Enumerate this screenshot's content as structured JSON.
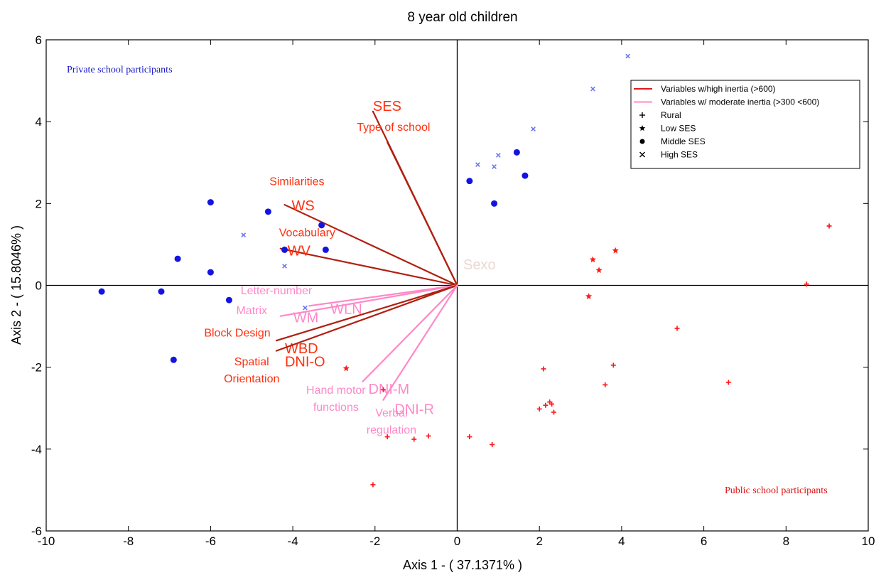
{
  "chart_data": {
    "type": "scatter",
    "title": "8 year old children",
    "xlabel": "Axis 1 - ( 37.1371% )",
    "ylabel": "Axis 2 - ( 15.8046% )",
    "xlim": [
      -10,
      10
    ],
    "ylim": [
      -6,
      6
    ],
    "xticks": [
      -10,
      -8,
      -6,
      -4,
      -2,
      0,
      2,
      4,
      6,
      8,
      10
    ],
    "yticks": [
      -6,
      -4,
      -2,
      0,
      2,
      4,
      6
    ],
    "grid": false,
    "colors": {
      "high_inertia": "#b02010",
      "moderate_inertia": "#ff88c8",
      "high_label": "#ff3010",
      "moderate_label": "#ff88c8",
      "private_points": "#1414e0",
      "high_ses_points": "#6a78f0",
      "public_points": "#ff1a1a",
      "private_note": "#1a1ac8",
      "public_note": "#e01010",
      "sexo_label": "#ead8d4"
    },
    "legend": {
      "position": "top-right",
      "entries": [
        {
          "label": "Variables w/high inertia (>600)",
          "symbol": "line-high"
        },
        {
          "label": "Variables w/ moderate inertia (>300 <600)",
          "symbol": "line-moderate"
        },
        {
          "label": "Rural",
          "symbol": "plus"
        },
        {
          "label": "Low SES",
          "symbol": "star"
        },
        {
          "label": "Middle SES",
          "symbol": "dot"
        },
        {
          "label": "High SES",
          "symbol": "x"
        }
      ]
    },
    "annotations": {
      "private": "Private school participants",
      "public": "Public school participants",
      "sexo": "Sexo"
    },
    "vectors": [
      {
        "abbr": "SES",
        "name": "",
        "x": -2.05,
        "y": 4.25,
        "inertia": "high"
      },
      {
        "abbr": "",
        "name": "Type of school",
        "x": -1.7,
        "y": 3.5,
        "inertia": "high"
      },
      {
        "abbr": "WS",
        "name": "Similarities",
        "x": -4.2,
        "y": 1.97,
        "inertia": "high"
      },
      {
        "abbr": "WV",
        "name": "Vocabulary",
        "x": -4.3,
        "y": 0.9,
        "inertia": "high"
      },
      {
        "abbr": "WLN",
        "name": "Letter-number",
        "x": -3.6,
        "y": -0.5,
        "inertia": "moderate"
      },
      {
        "abbr": "WM",
        "name": "Matrix",
        "x": -4.3,
        "y": -0.75,
        "inertia": "moderate"
      },
      {
        "abbr": "WBD",
        "name": "Block Design",
        "x": -4.4,
        "y": -1.35,
        "inertia": "high"
      },
      {
        "abbr": "DNI-O",
        "name": "Spatial Orientation",
        "x": -4.4,
        "y": -1.6,
        "inertia": "high"
      },
      {
        "abbr": "DNI-M",
        "name": "Hand motor functions",
        "x": -2.3,
        "y": -2.35,
        "inertia": "moderate"
      },
      {
        "abbr": "DNI-R",
        "name": "Verbal regulation",
        "x": -1.8,
        "y": -2.8,
        "inertia": "moderate"
      }
    ],
    "series": [
      {
        "name": "Middle SES",
        "marker": "dot",
        "group": "private",
        "points": [
          [
            -8.65,
            -0.15
          ],
          [
            -7.2,
            -0.15
          ],
          [
            -6.9,
            -1.82
          ],
          [
            -6.8,
            0.65
          ],
          [
            -6.0,
            2.03
          ],
          [
            -6.0,
            0.32
          ],
          [
            -5.55,
            -0.36
          ],
          [
            -4.6,
            1.8
          ],
          [
            -4.2,
            0.87
          ],
          [
            -3.3,
            1.47
          ],
          [
            -3.2,
            0.87
          ],
          [
            0.3,
            2.55
          ],
          [
            0.9,
            2.0
          ],
          [
            1.45,
            3.25
          ],
          [
            1.65,
            2.68
          ]
        ]
      },
      {
        "name": "High SES",
        "marker": "x",
        "group": "private",
        "points": [
          [
            -5.2,
            1.23
          ],
          [
            -4.2,
            0.47
          ],
          [
            -3.7,
            -0.55
          ],
          [
            0.5,
            2.95
          ],
          [
            0.9,
            2.9
          ],
          [
            1.0,
            3.18
          ],
          [
            1.85,
            3.82
          ],
          [
            3.3,
            4.8
          ],
          [
            4.15,
            5.6
          ]
        ]
      },
      {
        "name": "Low SES",
        "marker": "star",
        "group": "public",
        "points": [
          [
            -2.7,
            -2.03
          ],
          [
            3.2,
            -0.27
          ],
          [
            3.3,
            0.63
          ],
          [
            3.45,
            0.37
          ],
          [
            3.85,
            0.85
          ]
        ]
      },
      {
        "name": "Rural",
        "marker": "plus",
        "group": "public",
        "points": [
          [
            -2.05,
            -4.87
          ],
          [
            -1.8,
            -2.55
          ],
          [
            -1.7,
            -3.7
          ],
          [
            -1.05,
            -3.76
          ],
          [
            -0.7,
            -3.68
          ],
          [
            0.3,
            -3.7
          ],
          [
            0.85,
            -3.89
          ],
          [
            2.0,
            -3.02
          ],
          [
            2.1,
            -2.04
          ],
          [
            2.15,
            -2.93
          ],
          [
            2.25,
            -2.85
          ],
          [
            2.3,
            -2.9
          ],
          [
            2.35,
            -3.1
          ],
          [
            3.6,
            -2.43
          ],
          [
            3.8,
            -1.95
          ],
          [
            5.35,
            -1.05
          ],
          [
            6.6,
            -2.37
          ],
          [
            8.5,
            0.03
          ],
          [
            9.05,
            1.45
          ]
        ]
      }
    ]
  }
}
